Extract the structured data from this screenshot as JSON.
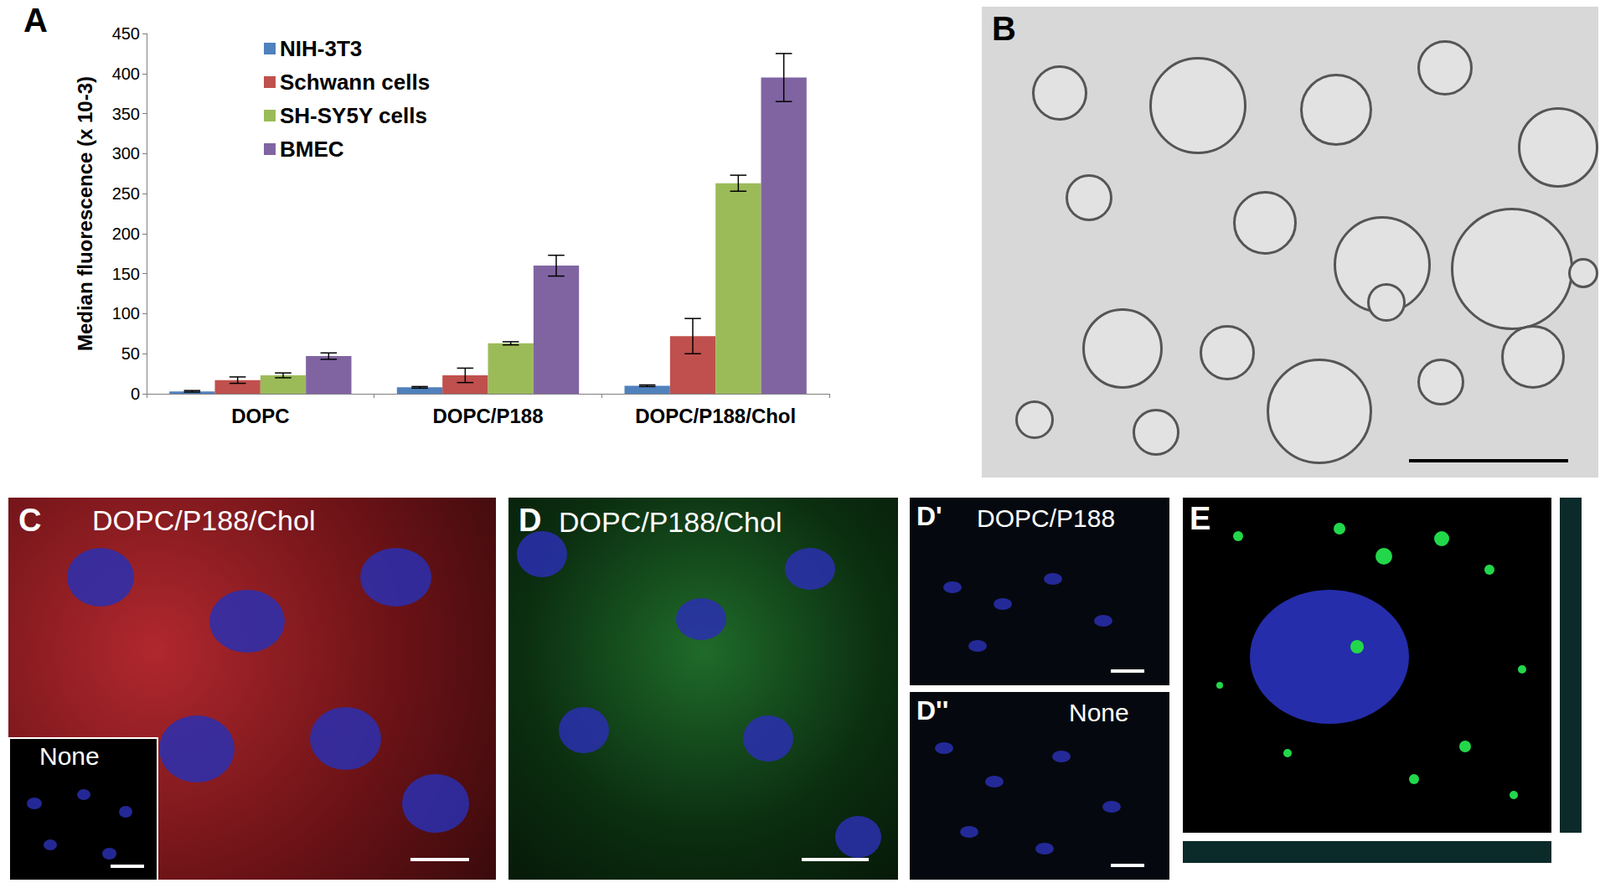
{
  "chart_data": {
    "type": "bar",
    "categories": [
      "DOPC",
      "DOPC/P188",
      "DOPC/P188/Chol"
    ],
    "series": [
      {
        "name": "NIH-3T3",
        "color": "#4f81bd",
        "values": [
          3,
          8,
          10
        ],
        "errors": [
          1,
          1,
          1
        ]
      },
      {
        "name": "Schwann cells",
        "color": "#c0504d",
        "values": [
          17,
          23,
          72
        ],
        "errors": [
          4,
          9,
          22
        ]
      },
      {
        "name": "SH-SY5Y cells",
        "color": "#9bbb59",
        "values": [
          23,
          63,
          263
        ],
        "errors": [
          3,
          2,
          10
        ]
      },
      {
        "name": "BMEC",
        "color": "#8064a2",
        "values": [
          47,
          160,
          395
        ],
        "errors": [
          4,
          13,
          30
        ]
      }
    ],
    "y_label": "Median fluorescence (x 10-3)",
    "ylim": [
      0,
      450
    ],
    "yticks": [
      0,
      50,
      100,
      150,
      200,
      250,
      300,
      350,
      400,
      450
    ],
    "grid": false,
    "legend": "upper left"
  },
  "panels": [
    {
      "label": "A"
    },
    {
      "label": "B"
    },
    {
      "label": "C",
      "caption": "DOPC/P188/Chol",
      "inset": "None"
    },
    {
      "label": "D",
      "caption": "DOPC/P188/Chol"
    },
    {
      "label": "D'",
      "caption": "DOPC/P188"
    },
    {
      "label": "D''",
      "caption": "None"
    },
    {
      "label": "E"
    }
  ]
}
